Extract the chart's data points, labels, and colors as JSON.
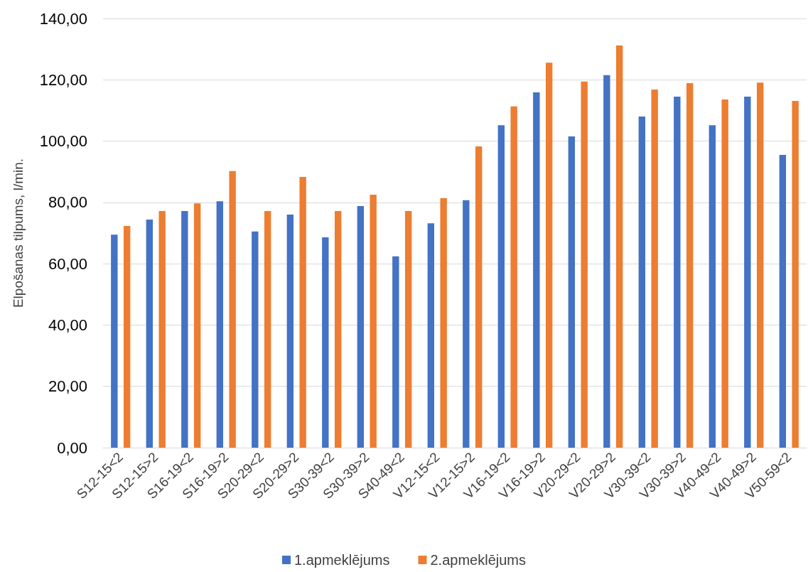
{
  "chart_data": {
    "type": "bar",
    "ylabel": "Elpošanas tilpums, l/min.",
    "categories": [
      "S12-15<2",
      "S12-15>2",
      "S16-19<2",
      "S16-19>2",
      "S20-29<2",
      "S20-29>2",
      "S30-39<2",
      "S30-39>2",
      "S40-49<2",
      "V12-15<2",
      "V12-15>2",
      "V16-19<2",
      "V16-19>2",
      "V20-29<2",
      "V20-29>2",
      "V30-39<2",
      "V30-39>2",
      "V40-49<2",
      "V40-49>2",
      "V50-59<2"
    ],
    "series": [
      {
        "name": "1.apmeklējums",
        "color": "#4472c4",
        "values": [
          69.5,
          74.4,
          77.2,
          80.4,
          70.5,
          76.0,
          68.6,
          78.8,
          62.4,
          73.2,
          80.7,
          105.2,
          115.9,
          101.5,
          121.5,
          108.0,
          114.5,
          105.2,
          114.5,
          95.5
        ]
      },
      {
        "name": "2.apmeklējums",
        "color": "#ed7d31",
        "values": [
          72.3,
          77.2,
          79.7,
          90.2,
          77.2,
          88.3,
          77.2,
          82.5,
          77.2,
          81.4,
          98.3,
          111.3,
          125.6,
          119.4,
          131.2,
          116.8,
          118.9,
          113.6,
          119.1,
          113.1
        ]
      }
    ],
    "ylim": [
      0,
      140
    ],
    "yticks": [
      {
        "value": 0,
        "label": "0,00"
      },
      {
        "value": 20,
        "label": "20,00"
      },
      {
        "value": 40,
        "label": "40,00"
      },
      {
        "value": 60,
        "label": "60,00"
      },
      {
        "value": 80,
        "label": "80,00"
      },
      {
        "value": 100,
        "label": "100,00"
      },
      {
        "value": 120,
        "label": "120,00"
      },
      {
        "value": 140,
        "label": "140,00"
      }
    ],
    "grid": "y",
    "legend": "bottom"
  }
}
